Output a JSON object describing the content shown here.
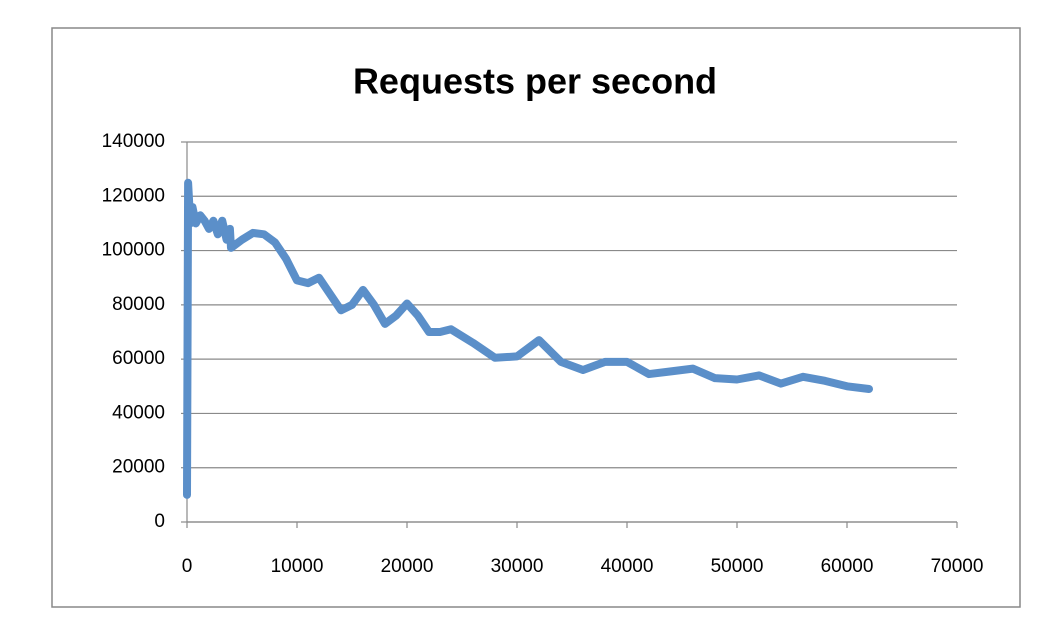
{
  "chart_data": {
    "type": "line",
    "title": "Requests per second",
    "color": "#5b8fc9",
    "x": [
      0,
      100,
      300,
      500,
      800,
      1200,
      1600,
      2000,
      2400,
      2800,
      3200,
      3600,
      3900,
      4000,
      5000,
      6000,
      7000,
      8000,
      9000,
      10000,
      11000,
      12000,
      13000,
      14000,
      15000,
      16000,
      17000,
      18000,
      19000,
      20000,
      21000,
      22000,
      23000,
      24000,
      26000,
      28000,
      30000,
      32000,
      34000,
      36000,
      38000,
      40000,
      42000,
      44000,
      46000,
      48000,
      50000,
      52000,
      54000,
      56000,
      58000,
      60000,
      62000
    ],
    "values": [
      10000,
      125000,
      110000,
      116000,
      110000,
      113000,
      111000,
      108000,
      111000,
      106000,
      111000,
      104000,
      108000,
      101000,
      104000,
      106500,
      106000,
      103000,
      97000,
      89000,
      88000,
      90000,
      84000,
      78000,
      80000,
      85500,
      80000,
      73000,
      76000,
      80500,
      76000,
      70000,
      70000,
      71000,
      66000,
      60500,
      61000,
      67000,
      59000,
      56000,
      59000,
      59000,
      54500,
      55500,
      56500,
      53000,
      52500,
      54000,
      51000,
      53500,
      52000,
      50000,
      49000
    ],
    "xlim": [
      0,
      70000
    ],
    "xticks": [
      0,
      10000,
      20000,
      30000,
      40000,
      50000,
      60000,
      70000
    ],
    "ylim": [
      0,
      140000
    ],
    "yticks": [
      0,
      20000,
      40000,
      60000,
      80000,
      100000,
      120000,
      140000
    ],
    "grid": true
  }
}
